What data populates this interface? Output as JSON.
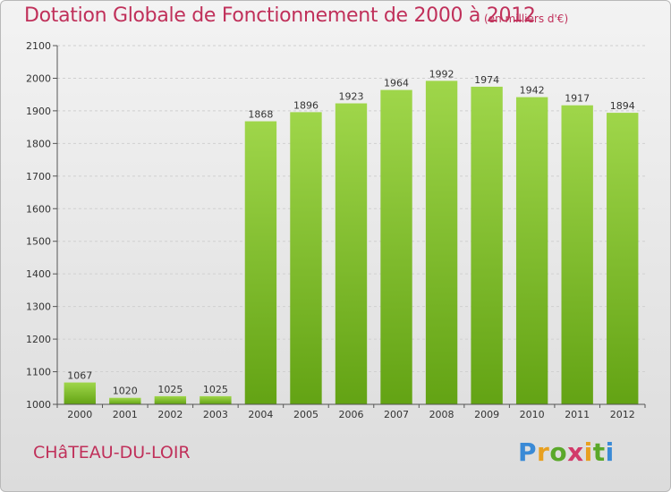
{
  "header": {
    "title": "Dotation Globale de Fonctionnement de 2000 à 2012",
    "subtitle": "(en milliers d'€)"
  },
  "footer": {
    "commune": "CHâTEAU-DU-LOIR",
    "brand": "Proxiti"
  },
  "colors": {
    "bar_top": "#9fd64a",
    "bar_bottom": "#63a314",
    "title": "#c0305a",
    "grid": "#d0d0d0"
  },
  "chart_data": {
    "type": "bar",
    "title": "Dotation Globale de Fonctionnement de 2000 à 2012",
    "xlabel": "",
    "ylabel": "",
    "categories": [
      "2000",
      "2001",
      "2002",
      "2003",
      "2004",
      "2005",
      "2006",
      "2007",
      "2008",
      "2009",
      "2010",
      "2011",
      "2012"
    ],
    "values": [
      1067,
      1020,
      1025,
      1025,
      1868,
      1896,
      1923,
      1964,
      1992,
      1974,
      1942,
      1917,
      1894
    ],
    "ylim": [
      1000,
      2100
    ],
    "yticks": [
      1000,
      1100,
      1200,
      1300,
      1400,
      1500,
      1600,
      1700,
      1800,
      1900,
      2000,
      2100
    ],
    "grid": true,
    "legend": "none"
  }
}
